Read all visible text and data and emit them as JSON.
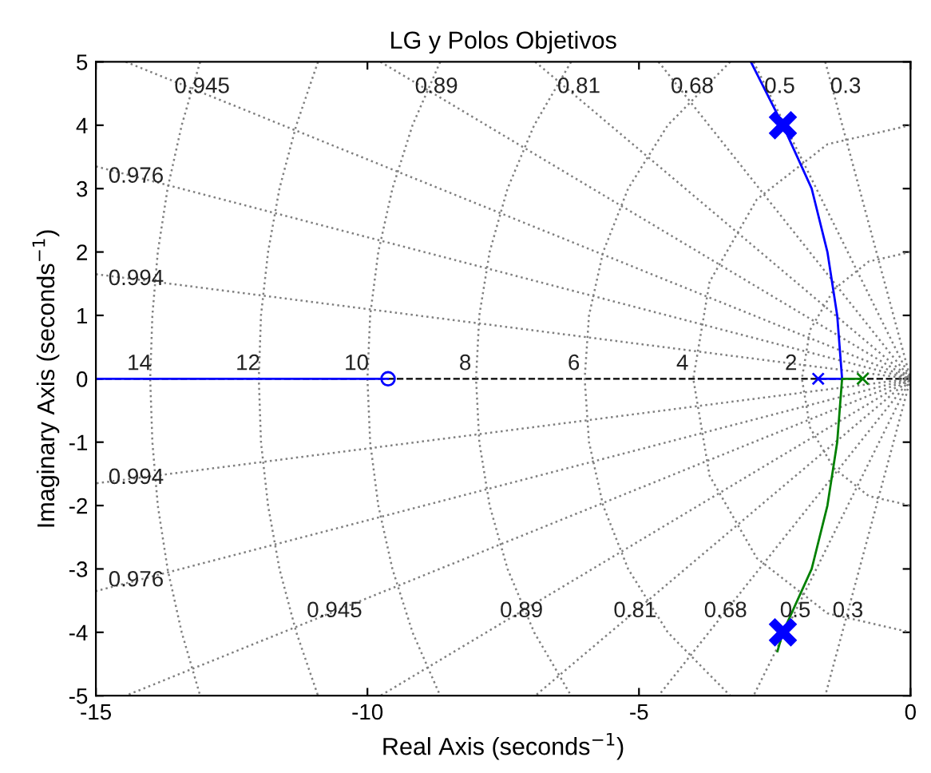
{
  "chart_data": {
    "type": "line",
    "title": "LG y Polos Objetivos",
    "xlabel": "Real Axis (seconds$^{−1}$)",
    "ylabel": "Imaginary Axis (seconds$^{−1}$)",
    "xlim": [
      -15,
      0
    ],
    "xticks": [
      -15,
      -10,
      -5,
      0
    ],
    "ylim": [
      -5,
      5
    ],
    "yticks": [
      -5,
      -4,
      -3,
      -2,
      -1,
      0,
      1,
      2,
      3,
      4,
      5
    ],
    "grid": false,
    "legend": false,
    "line_style": "solid",
    "ref_lines": [
      {
        "axis": "y",
        "value": 0,
        "color": "#000000",
        "line_style": "dashed"
      }
    ],
    "series": [
      {
        "name": "0.3",
        "color": "#808080",
        "line_style": "dotted",
        "x": [
          -1.57,
          0,
          -1.57
        ],
        "values": [
          5,
          0,
          -5
        ]
      },
      {
        "name": "0.5",
        "color": "#808080",
        "line_style": "dotted",
        "x": [
          -2.89,
          0,
          -2.89
        ],
        "values": [
          5,
          0,
          -5
        ]
      },
      {
        "name": "0.68",
        "color": "#808080",
        "line_style": "dotted",
        "x": [
          -4.64,
          0,
          -4.64
        ],
        "values": [
          5,
          0,
          -5
        ]
      },
      {
        "name": "0.81",
        "color": "#808080",
        "line_style": "dotted",
        "x": [
          -6.91,
          0,
          -6.91
        ],
        "values": [
          5,
          0,
          -5
        ]
      },
      {
        "name": "0.89",
        "color": "#808080",
        "line_style": "dotted",
        "x": [
          -9.76,
          0,
          -9.76
        ],
        "values": [
          5,
          0,
          -5
        ]
      },
      {
        "name": "0.945",
        "color": "#808080",
        "line_style": "dotted",
        "x": [
          -14.45,
          0,
          -14.45
        ],
        "values": [
          5,
          0,
          -5
        ]
      },
      {
        "name": "0.976",
        "color": "#808080",
        "line_style": "dotted",
        "x": [
          -15,
          0,
          -15
        ],
        "values": [
          3.35,
          0,
          -3.35
        ]
      },
      {
        "name": "0.994",
        "color": "#808080",
        "line_style": "dotted",
        "x": [
          -15,
          0,
          -15
        ],
        "values": [
          1.65,
          0,
          -1.65
        ]
      },
      {
        "name": "2",
        "color": "#808080",
        "line_style": "dotted",
        "x": [
          0,
          -0.77,
          -1.41,
          -1.85,
          -2,
          -1.85,
          -1.41,
          -0.77,
          0
        ],
        "values": [
          2,
          1.85,
          1.41,
          0.77,
          0,
          -0.77,
          -1.41,
          -1.85,
          -2
        ]
      },
      {
        "name": "4",
        "color": "#808080",
        "line_style": "dotted",
        "x": [
          0,
          -1.53,
          -2.83,
          -3.7,
          -4,
          -3.7,
          -2.83,
          -1.53,
          0
        ],
        "values": [
          4,
          3.7,
          2.83,
          1.53,
          0,
          -1.53,
          -2.83,
          -3.7,
          -4
        ]
      },
      {
        "name": "6",
        "color": "#808080",
        "line_style": "dotted",
        "x": [
          -3.32,
          -4.47,
          -5.2,
          -5.66,
          -5.92,
          -6,
          -5.92,
          -5.66,
          -5.2,
          -4.47,
          -3.32
        ],
        "values": [
          5,
          4,
          3,
          2,
          1,
          0,
          -1,
          -2,
          -3,
          -4,
          -5
        ]
      },
      {
        "name": "8",
        "color": "#808080",
        "line_style": "dotted",
        "x": [
          -6.25,
          -6.93,
          -7.42,
          -7.75,
          -7.94,
          -8,
          -7.94,
          -7.75,
          -7.42,
          -6.93,
          -6.25
        ],
        "values": [
          5,
          4,
          3,
          2,
          1,
          0,
          -1,
          -2,
          -3,
          -4,
          -5
        ]
      },
      {
        "name": "10",
        "color": "#808080",
        "line_style": "dotted",
        "x": [
          -8.66,
          -9.17,
          -9.54,
          -9.8,
          -9.95,
          -10,
          -9.95,
          -9.8,
          -9.54,
          -9.17,
          -8.66
        ],
        "values": [
          5,
          4,
          3,
          2,
          1,
          0,
          -1,
          -2,
          -3,
          -4,
          -5
        ]
      },
      {
        "name": "12",
        "color": "#808080",
        "line_style": "dotted",
        "x": [
          -10.91,
          -11.31,
          -11.62,
          -11.83,
          -11.96,
          -12,
          -11.96,
          -11.83,
          -11.62,
          -11.31,
          -10.91
        ],
        "values": [
          5,
          4,
          3,
          2,
          1,
          0,
          -1,
          -2,
          -3,
          -4,
          -5
        ]
      },
      {
        "name": "14",
        "color": "#808080",
        "line_style": "dotted",
        "x": [
          -13.08,
          -13.42,
          -13.68,
          -13.86,
          -13.96,
          -14,
          -13.96,
          -13.86,
          -13.68,
          -13.42,
          -13.08
        ],
        "values": [
          5,
          4,
          3,
          2,
          1,
          0,
          -1,
          -2,
          -3,
          -4,
          -5
        ]
      },
      {
        "color": "#0000ff",
        "x": [
          -15,
          -9.62
        ],
        "values": [
          0,
          0
        ]
      },
      {
        "color": "#0000ff",
        "x": [
          -1.7,
          -1.26,
          -1.35,
          -1.53,
          -1.82,
          -2.35,
          -2.94
        ],
        "values": [
          0,
          0,
          1,
          2,
          3,
          4,
          5
        ]
      },
      {
        "color": "#008000",
        "x": [
          -0.88,
          -1.26,
          -1.35,
          -1.53,
          -1.82,
          -2.35,
          -2.45
        ],
        "values": [
          0,
          0,
          -1,
          -2,
          -3,
          -4,
          -4.3
        ]
      },
      {
        "type": "scatter",
        "marker": "cross",
        "colors": [
          "#0000ff",
          "#008000"
        ],
        "x": [
          -1.7,
          -0.88
        ],
        "values": [
          0,
          0
        ]
      },
      {
        "type": "scatter",
        "marker": "circle",
        "color": "#0000ff",
        "x": [
          -9.62
        ],
        "values": [
          0
        ]
      },
      {
        "type": "scatter",
        "marker": "cross",
        "color": "#0000ff",
        "x": [
          -2.35,
          -2.35
        ],
        "values": [
          4,
          -4
        ]
      }
    ]
  }
}
